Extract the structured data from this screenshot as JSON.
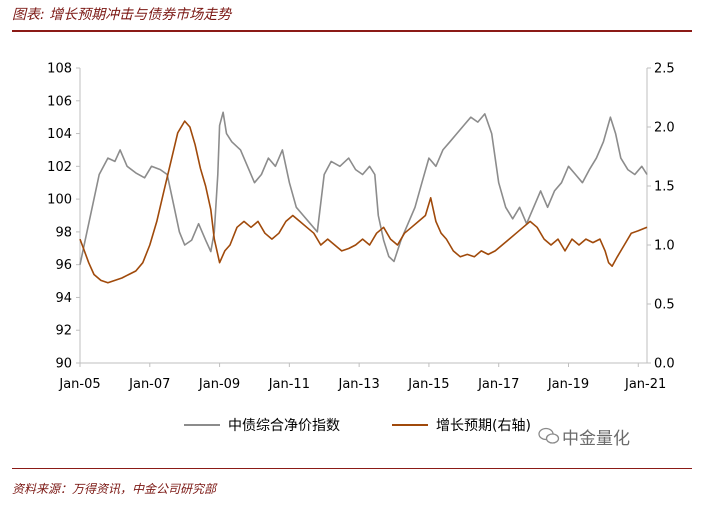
{
  "header": {
    "title": "图表: 增长预期冲击与债券市场走势"
  },
  "footer": {
    "source": "资料来源：万得资讯，中金公司研究部",
    "brand": "中金量化"
  },
  "chart_data": {
    "type": "line",
    "title": "增长预期冲击与债券市场走势",
    "x_ticks": [
      "Jan-05",
      "Jan-07",
      "Jan-09",
      "Jan-11",
      "Jan-13",
      "Jan-15",
      "Jan-17",
      "Jan-19",
      "Jan-21"
    ],
    "x_range": [
      2005.0,
      2021.25
    ],
    "y_left": {
      "range": [
        90,
        108
      ],
      "ticks": [
        "90",
        "92",
        "94",
        "96",
        "98",
        "100",
        "102",
        "104",
        "106",
        "108"
      ]
    },
    "y_right": {
      "range": [
        0.0,
        2.5
      ],
      "ticks": [
        "0.0",
        "0.5",
        "1.0",
        "1.5",
        "2.0",
        "2.5"
      ]
    },
    "series": [
      {
        "name": "中债综合净价指数",
        "axis": "left",
        "color": "#8c8c8c",
        "points": [
          [
            2005.0,
            96.0
          ],
          [
            2005.15,
            97.5
          ],
          [
            2005.35,
            99.5
          ],
          [
            2005.55,
            101.5
          ],
          [
            2005.8,
            102.5
          ],
          [
            2006.0,
            102.3
          ],
          [
            2006.15,
            103.0
          ],
          [
            2006.35,
            102.0
          ],
          [
            2006.6,
            101.6
          ],
          [
            2006.85,
            101.3
          ],
          [
            2007.05,
            102.0
          ],
          [
            2007.3,
            101.8
          ],
          [
            2007.5,
            101.5
          ],
          [
            2007.7,
            99.5
          ],
          [
            2007.85,
            98.0
          ],
          [
            2008.0,
            97.2
          ],
          [
            2008.2,
            97.5
          ],
          [
            2008.4,
            98.5
          ],
          [
            2008.6,
            97.5
          ],
          [
            2008.75,
            96.8
          ],
          [
            2008.85,
            98.0
          ],
          [
            2008.95,
            101.5
          ],
          [
            2009.0,
            104.5
          ],
          [
            2009.1,
            105.3
          ],
          [
            2009.2,
            104.0
          ],
          [
            2009.35,
            103.5
          ],
          [
            2009.6,
            103.0
          ],
          [
            2009.8,
            102.0
          ],
          [
            2010.0,
            101.0
          ],
          [
            2010.2,
            101.5
          ],
          [
            2010.4,
            102.5
          ],
          [
            2010.6,
            102.0
          ],
          [
            2010.8,
            103.0
          ],
          [
            2011.0,
            101.0
          ],
          [
            2011.2,
            99.5
          ],
          [
            2011.4,
            99.0
          ],
          [
            2011.6,
            98.5
          ],
          [
            2011.8,
            98.0
          ],
          [
            2012.0,
            101.5
          ],
          [
            2012.2,
            102.3
          ],
          [
            2012.45,
            102.0
          ],
          [
            2012.7,
            102.5
          ],
          [
            2012.9,
            101.8
          ],
          [
            2013.1,
            101.5
          ],
          [
            2013.3,
            102.0
          ],
          [
            2013.45,
            101.5
          ],
          [
            2013.55,
            99.0
          ],
          [
            2013.7,
            97.5
          ],
          [
            2013.85,
            96.5
          ],
          [
            2014.0,
            96.2
          ],
          [
            2014.2,
            97.5
          ],
          [
            2014.4,
            98.5
          ],
          [
            2014.6,
            99.5
          ],
          [
            2014.8,
            101.0
          ],
          [
            2015.0,
            102.5
          ],
          [
            2015.2,
            102.0
          ],
          [
            2015.4,
            103.0
          ],
          [
            2015.6,
            103.5
          ],
          [
            2015.8,
            104.0
          ],
          [
            2016.0,
            104.5
          ],
          [
            2016.2,
            105.0
          ],
          [
            2016.4,
            104.7
          ],
          [
            2016.6,
            105.2
          ],
          [
            2016.8,
            104.0
          ],
          [
            2017.0,
            101.0
          ],
          [
            2017.2,
            99.5
          ],
          [
            2017.4,
            98.8
          ],
          [
            2017.6,
            99.5
          ],
          [
            2017.8,
            98.5
          ],
          [
            2018.0,
            99.5
          ],
          [
            2018.2,
            100.5
          ],
          [
            2018.4,
            99.5
          ],
          [
            2018.6,
            100.5
          ],
          [
            2018.8,
            101.0
          ],
          [
            2019.0,
            102.0
          ],
          [
            2019.2,
            101.5
          ],
          [
            2019.4,
            101.0
          ],
          [
            2019.6,
            101.8
          ],
          [
            2019.8,
            102.5
          ],
          [
            2020.0,
            103.5
          ],
          [
            2020.2,
            105.0
          ],
          [
            2020.35,
            104.0
          ],
          [
            2020.5,
            102.5
          ],
          [
            2020.7,
            101.8
          ],
          [
            2020.9,
            101.5
          ],
          [
            2021.1,
            102.0
          ],
          [
            2021.25,
            101.5
          ]
        ]
      },
      {
        "name": "增长预期(右轴)",
        "axis": "right",
        "color": "#a04a0b",
        "points": [
          [
            2005.0,
            1.05
          ],
          [
            2005.1,
            0.97
          ],
          [
            2005.25,
            0.85
          ],
          [
            2005.4,
            0.75
          ],
          [
            2005.6,
            0.7
          ],
          [
            2005.8,
            0.68
          ],
          [
            2006.0,
            0.7
          ],
          [
            2006.2,
            0.72
          ],
          [
            2006.4,
            0.75
          ],
          [
            2006.6,
            0.78
          ],
          [
            2006.8,
            0.85
          ],
          [
            2007.0,
            1.0
          ],
          [
            2007.2,
            1.2
          ],
          [
            2007.4,
            1.45
          ],
          [
            2007.6,
            1.7
          ],
          [
            2007.8,
            1.95
          ],
          [
            2008.0,
            2.05
          ],
          [
            2008.15,
            2.0
          ],
          [
            2008.3,
            1.85
          ],
          [
            2008.45,
            1.65
          ],
          [
            2008.6,
            1.5
          ],
          [
            2008.75,
            1.3
          ],
          [
            2008.85,
            1.05
          ],
          [
            2009.0,
            0.85
          ],
          [
            2009.15,
            0.95
          ],
          [
            2009.3,
            1.0
          ],
          [
            2009.5,
            1.15
          ],
          [
            2009.7,
            1.2
          ],
          [
            2009.9,
            1.15
          ],
          [
            2010.1,
            1.2
          ],
          [
            2010.3,
            1.1
          ],
          [
            2010.5,
            1.05
          ],
          [
            2010.7,
            1.1
          ],
          [
            2010.9,
            1.2
          ],
          [
            2011.1,
            1.25
          ],
          [
            2011.3,
            1.2
          ],
          [
            2011.5,
            1.15
          ],
          [
            2011.7,
            1.1
          ],
          [
            2011.9,
            1.0
          ],
          [
            2012.1,
            1.05
          ],
          [
            2012.3,
            1.0
          ],
          [
            2012.5,
            0.95
          ],
          [
            2012.7,
            0.97
          ],
          [
            2012.9,
            1.0
          ],
          [
            2013.1,
            1.05
          ],
          [
            2013.3,
            1.0
          ],
          [
            2013.5,
            1.1
          ],
          [
            2013.7,
            1.15
          ],
          [
            2013.9,
            1.05
          ],
          [
            2014.1,
            1.0
          ],
          [
            2014.3,
            1.1
          ],
          [
            2014.5,
            1.15
          ],
          [
            2014.7,
            1.2
          ],
          [
            2014.9,
            1.25
          ],
          [
            2015.05,
            1.4
          ],
          [
            2015.2,
            1.2
          ],
          [
            2015.35,
            1.1
          ],
          [
            2015.5,
            1.05
          ],
          [
            2015.7,
            0.95
          ],
          [
            2015.9,
            0.9
          ],
          [
            2016.1,
            0.92
          ],
          [
            2016.3,
            0.9
          ],
          [
            2016.5,
            0.95
          ],
          [
            2016.7,
            0.92
          ],
          [
            2016.9,
            0.95
          ],
          [
            2017.1,
            1.0
          ],
          [
            2017.3,
            1.05
          ],
          [
            2017.5,
            1.1
          ],
          [
            2017.7,
            1.15
          ],
          [
            2017.9,
            1.2
          ],
          [
            2018.1,
            1.15
          ],
          [
            2018.3,
            1.05
          ],
          [
            2018.5,
            1.0
          ],
          [
            2018.7,
            1.05
          ],
          [
            2018.9,
            0.95
          ],
          [
            2019.1,
            1.05
          ],
          [
            2019.3,
            1.0
          ],
          [
            2019.5,
            1.05
          ],
          [
            2019.7,
            1.02
          ],
          [
            2019.9,
            1.05
          ],
          [
            2020.05,
            0.95
          ],
          [
            2020.15,
            0.85
          ],
          [
            2020.25,
            0.82
          ],
          [
            2020.4,
            0.9
          ],
          [
            2020.6,
            1.0
          ],
          [
            2020.8,
            1.1
          ],
          [
            2021.0,
            1.12
          ],
          [
            2021.25,
            1.15
          ]
        ]
      }
    ],
    "legend": "bottom-center"
  }
}
